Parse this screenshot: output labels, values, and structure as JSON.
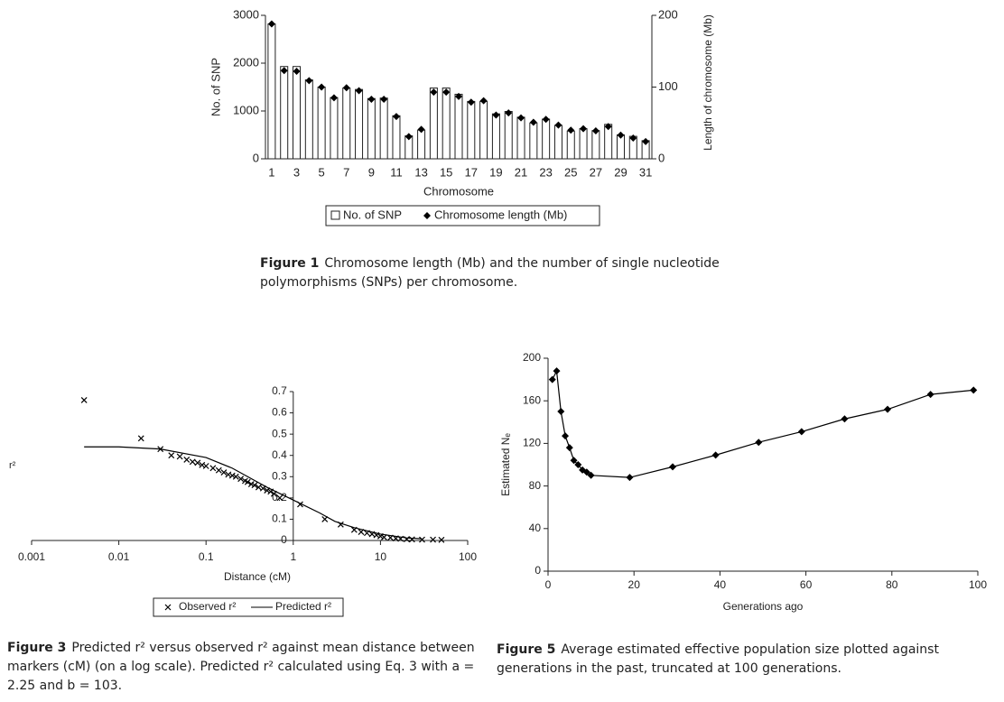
{
  "chart_data": [
    {
      "type": "bar",
      "x_label": "Chromosome",
      "y_label": "No. of SNP",
      "y2_label": "Length of chromosome (Mb)",
      "caption_label": "Figure 1",
      "caption": "Chromosome length (Mb) and the number of single nucleotide polymorphisms (SNPs) per chromosome.",
      "categories": [
        "1",
        null,
        "3",
        null,
        "5",
        null,
        "7",
        null,
        "9",
        null,
        "11",
        null,
        "13",
        null,
        "15",
        null,
        "17",
        null,
        "19",
        null,
        "21",
        null,
        "23",
        null,
        "25",
        null,
        "27",
        null,
        "29",
        null,
        "31"
      ],
      "series": [
        {
          "name": "No. of SNP",
          "type": "bar",
          "color": "#ffffff",
          "values": [
            2820,
            1930,
            1930,
            1650,
            1500,
            1280,
            1480,
            1450,
            1260,
            1270,
            900,
            480,
            600,
            1480,
            1480,
            1350,
            1200,
            1200,
            940,
            990,
            870,
            750,
            830,
            700,
            580,
            630,
            590,
            720,
            500,
            470,
            380
          ]
        },
        {
          "name": "Chromosome length (Mb)",
          "type": "scatter",
          "axis": "y2",
          "color": "#000000",
          "values": [
            188,
            123,
            122,
            109,
            100,
            85,
            99,
            95,
            83,
            83,
            59,
            31,
            41,
            93,
            93,
            87,
            79,
            81,
            61,
            64,
            57,
            51,
            55,
            47,
            40,
            42,
            39,
            45,
            33,
            29,
            24
          ]
        }
      ],
      "ylim": [
        0,
        3000
      ],
      "yticks": [
        0,
        1000,
        2000,
        3000
      ],
      "y2lim": [
        0,
        200
      ],
      "y2ticks": [
        0,
        100,
        200
      ]
    },
    {
      "type": "scatter",
      "x_label": "Distance (cM)",
      "y_label": "r²",
      "caption_label": "Figure 3",
      "caption": "Predicted r² versus observed r² against mean distance between markers (cM) (on a log scale). Predicted r² calculated using Eq. 3 with a = 2.25 and b = 103.",
      "log_x": true,
      "y_axis_crosses": 1,
      "xlim": [
        0.001,
        100
      ],
      "xticks": [
        0.001,
        0.01,
        0.1,
        1,
        10,
        100
      ],
      "ylim": [
        0,
        0.7
      ],
      "yticks": [
        0,
        0.1,
        0.2,
        0.3,
        0.4,
        0.5,
        0.6,
        0.7
      ],
      "series": [
        {
          "name": "Observed r²",
          "type": "scatter",
          "color": "#000000",
          "x": [
            0.004,
            0.018,
            0.03,
            0.04,
            0.05,
            0.06,
            0.07,
            0.08,
            0.09,
            0.1,
            0.12,
            0.14,
            0.16,
            0.18,
            0.2,
            0.22,
            0.25,
            0.28,
            0.3,
            0.33,
            0.36,
            0.4,
            0.45,
            0.5,
            0.55,
            0.6,
            0.7,
            1.2,
            2.3,
            3.5,
            5,
            6,
            7,
            8,
            9,
            10,
            11,
            13,
            15,
            17,
            20,
            23,
            30,
            40,
            50
          ],
          "values": [
            0.66,
            0.48,
            0.43,
            0.4,
            0.395,
            0.38,
            0.37,
            0.365,
            0.355,
            0.35,
            0.34,
            0.33,
            0.32,
            0.31,
            0.305,
            0.3,
            0.29,
            0.28,
            0.275,
            0.265,
            0.26,
            0.25,
            0.245,
            0.235,
            0.23,
            0.22,
            0.2,
            0.17,
            0.1,
            0.075,
            0.05,
            0.04,
            0.035,
            0.03,
            0.025,
            0.02,
            0.015,
            0.013,
            0.01,
            0.008,
            0.006,
            0.005,
            0.004,
            0.004,
            0.003
          ]
        },
        {
          "name": "Predicted r²",
          "type": "line",
          "color": "#000000",
          "x": [
            0.004,
            0.01,
            0.03,
            0.1,
            0.2,
            0.3,
            0.5,
            1,
            2,
            3,
            5,
            10,
            20,
            30
          ],
          "values": [
            0.44,
            0.44,
            0.43,
            0.39,
            0.34,
            0.3,
            0.25,
            0.19,
            0.13,
            0.09,
            0.06,
            0.03,
            0.012,
            0.008
          ]
        }
      ]
    },
    {
      "type": "line",
      "x_label": "Generations ago",
      "y_label": "Estimated Nₑ",
      "caption_label": "Figure 5",
      "caption": "Average estimated effective population size plotted against generations in the past, truncated at 100 generations.",
      "xlim": [
        0,
        100
      ],
      "xticks": [
        0,
        20,
        40,
        60,
        80,
        100
      ],
      "ylim": [
        0,
        200
      ],
      "yticks": [
        0,
        40,
        80,
        120,
        160,
        200
      ],
      "color": "#000000",
      "x": [
        1,
        2,
        3,
        4,
        5,
        6,
        7,
        8,
        9,
        10,
        19,
        29,
        39,
        49,
        59,
        69,
        79,
        89,
        99
      ],
      "values": [
        180,
        188,
        150,
        127,
        116,
        104,
        100,
        95,
        93,
        90,
        88,
        98,
        109,
        121,
        131,
        143,
        152,
        166,
        170
      ]
    }
  ]
}
